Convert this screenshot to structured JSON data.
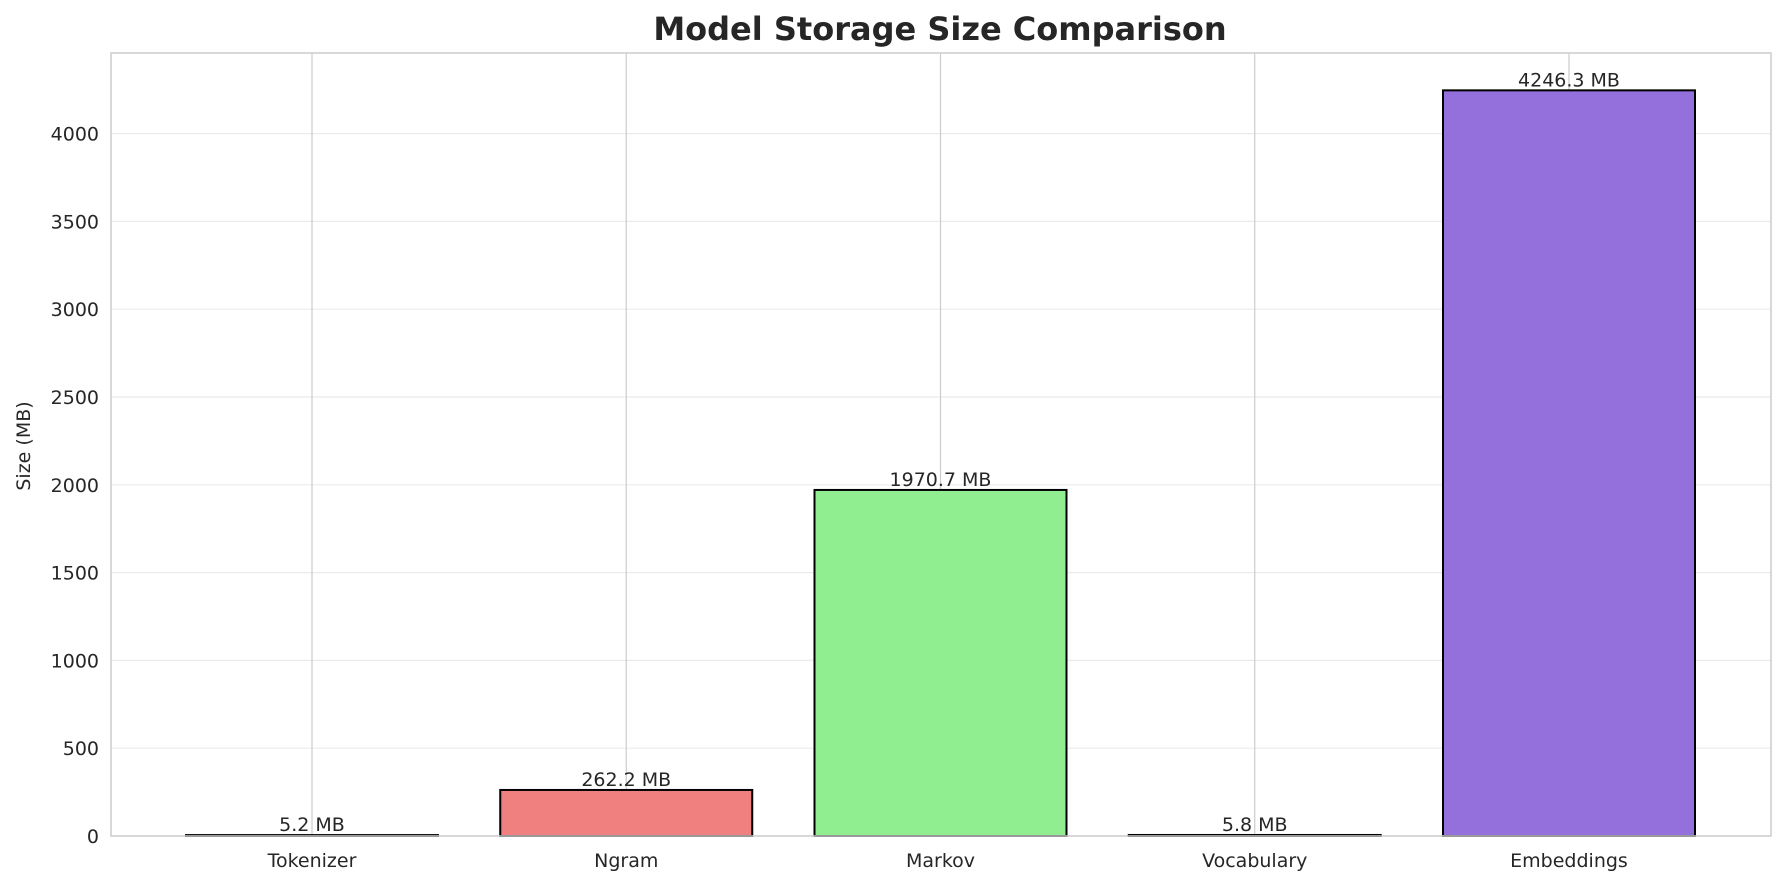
{
  "chart_data": {
    "type": "bar",
    "title": "Model Storage Size Comparison",
    "xlabel": "",
    "ylabel": "Size (MB)",
    "categories": [
      "Tokenizer",
      "Ngram",
      "Markov",
      "Vocabulary",
      "Embeddings"
    ],
    "values": [
      5.2,
      262.2,
      1970.7,
      5.8,
      4246.3
    ],
    "value_labels": [
      "5.2 MB",
      "262.2 MB",
      "1970.7 MB",
      "5.8 MB",
      "4246.3 MB"
    ],
    "colors": [
      "#ADD8E6",
      "#F08080",
      "#90EE90",
      "#FFD700",
      "#9370DB"
    ],
    "bar_edge_color": "#000000",
    "ylim": [
      0,
      4459
    ],
    "yticks": [
      0,
      500,
      1000,
      1500,
      2000,
      2500,
      3000,
      3500,
      4000
    ],
    "ytick_labels": [
      "0",
      "500",
      "1000",
      "1500",
      "2000",
      "2500",
      "3000",
      "3500",
      "4000"
    ],
    "grid": true,
    "legend": "none"
  }
}
